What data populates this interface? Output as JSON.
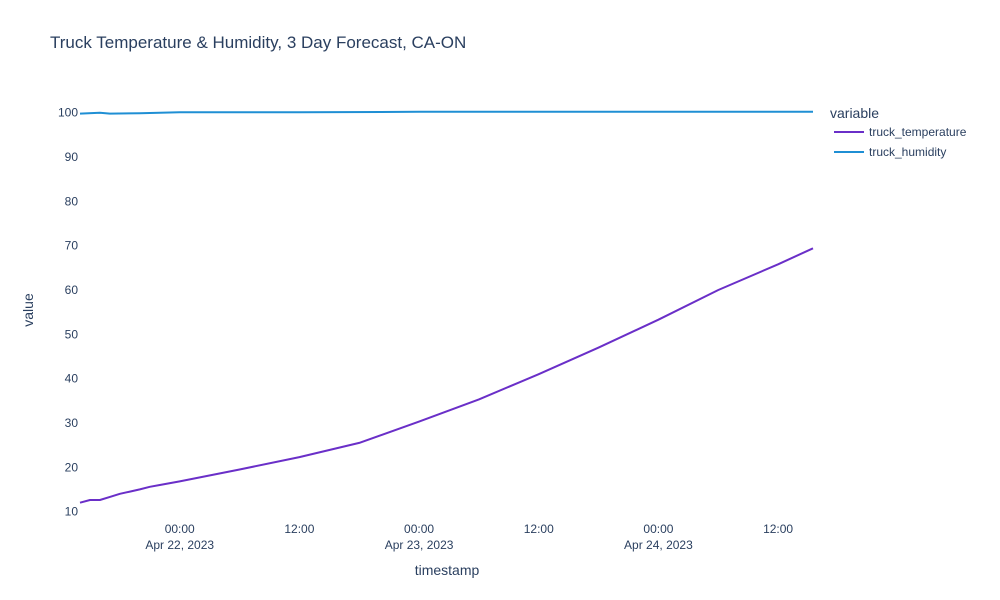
{
  "chart_data": {
    "type": "line",
    "title": "Truck Temperature & Humidity, 3 Day Forecast, CA-ON",
    "xlabel": "timestamp",
    "ylabel": "value",
    "legend_title": "variable",
    "legend_position": "right",
    "grid": false,
    "xlim": [
      "2023-04-21T14:00",
      "2023-04-24T15:30"
    ],
    "ylim": [
      9,
      104
    ],
    "yticks": [
      10,
      20,
      30,
      40,
      50,
      60,
      70,
      80,
      90,
      100
    ],
    "xticks": [
      {
        "value": "2023-04-22T00:00",
        "label": "00:00",
        "sublabel": "Apr 22, 2023"
      },
      {
        "value": "2023-04-22T12:00",
        "label": "12:00",
        "sublabel": ""
      },
      {
        "value": "2023-04-23T00:00",
        "label": "00:00",
        "sublabel": "Apr 23, 2023"
      },
      {
        "value": "2023-04-23T12:00",
        "label": "12:00",
        "sublabel": ""
      },
      {
        "value": "2023-04-24T00:00",
        "label": "00:00",
        "sublabel": "Apr 24, 2023"
      },
      {
        "value": "2023-04-24T12:00",
        "label": "12:00",
        "sublabel": ""
      }
    ],
    "series": [
      {
        "name": "truck_temperature",
        "color": "#6a2fc8",
        "points": [
          [
            "2023-04-21T14:00",
            12.0
          ],
          [
            "2023-04-21T15:00",
            12.6
          ],
          [
            "2023-04-21T16:00",
            12.6
          ],
          [
            "2023-04-21T17:00",
            13.3
          ],
          [
            "2023-04-21T18:00",
            14.0
          ],
          [
            "2023-04-21T19:00",
            14.5
          ],
          [
            "2023-04-21T20:00",
            15.0
          ],
          [
            "2023-04-21T21:00",
            15.6
          ],
          [
            "2023-04-21T22:00",
            16.0
          ],
          [
            "2023-04-22T00:00",
            16.8
          ],
          [
            "2023-04-22T06:00",
            19.5
          ],
          [
            "2023-04-22T12:00",
            22.3
          ],
          [
            "2023-04-22T18:00",
            25.5
          ],
          [
            "2023-04-23T00:00",
            30.3
          ],
          [
            "2023-04-23T06:00",
            35.3
          ],
          [
            "2023-04-23T12:00",
            41.0
          ],
          [
            "2023-04-23T18:00",
            47.0
          ],
          [
            "2023-04-24T00:00",
            53.3
          ],
          [
            "2023-04-24T06:00",
            60.0
          ],
          [
            "2023-04-24T12:00",
            65.8
          ],
          [
            "2023-04-24T15:30",
            69.4
          ]
        ]
      },
      {
        "name": "truck_humidity",
        "color": "#1f8fd4",
        "points": [
          [
            "2023-04-21T14:00",
            99.8
          ],
          [
            "2023-04-21T16:00",
            100.0
          ],
          [
            "2023-04-21T17:00",
            99.8
          ],
          [
            "2023-04-21T20:00",
            99.9
          ],
          [
            "2023-04-22T00:00",
            100.1
          ],
          [
            "2023-04-22T12:00",
            100.1
          ],
          [
            "2023-04-23T00:00",
            100.2
          ],
          [
            "2023-04-24T00:00",
            100.2
          ],
          [
            "2023-04-24T15:30",
            100.2
          ]
        ]
      }
    ]
  }
}
